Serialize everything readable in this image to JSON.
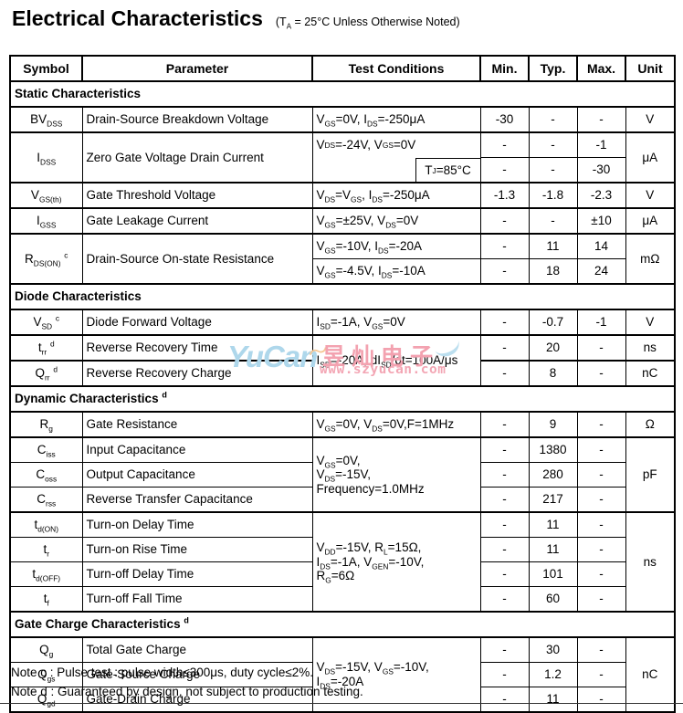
{
  "page": {
    "title": "Electrical Characteristics",
    "title_note": "(T~A~ = 25°C Unless Otherwise Noted)"
  },
  "table": {
    "headers": [
      "Symbol",
      "Parameter",
      "Test Conditions",
      "Min.",
      "Typ.",
      "Max.",
      "Unit"
    ],
    "rows": [
      {
        "type": "section",
        "thick": true,
        "label": "Static Characteristics"
      },
      {
        "type": "data",
        "thick": true,
        "cells": [
          {
            "k": "sym",
            "t": "BV~DSS~"
          },
          {
            "k": "param",
            "t": "Drain-Source Breakdown Voltage"
          },
          {
            "k": "cond",
            "t": "V~GS~=0V, I~DS~=-250μA"
          },
          {
            "k": "num",
            "t": "-30"
          },
          {
            "k": "num",
            "t": "-"
          },
          {
            "k": "num",
            "t": "-"
          },
          {
            "k": "unit",
            "t": "V"
          }
        ]
      },
      {
        "type": "data",
        "thick": true,
        "cells": [
          {
            "k": "sym",
            "t": "I~DSS~",
            "rs": 2
          },
          {
            "k": "param",
            "t": "Zero Gate Voltage Drain Current",
            "rs": 2
          },
          {
            "k": "condsplit",
            "t": "V~DS~=-24V, V~GS~=0V",
            "sub": "T~J~=85°C",
            "rs": 2
          },
          {
            "k": "num",
            "t": "-"
          },
          {
            "k": "num",
            "t": "-"
          },
          {
            "k": "num",
            "t": "-1"
          },
          {
            "k": "unit",
            "t": "μA",
            "rs": 2
          }
        ]
      },
      {
        "type": "data",
        "cells": [
          {
            "k": "num",
            "t": "-"
          },
          {
            "k": "num",
            "t": "-"
          },
          {
            "k": "num",
            "t": "-30"
          }
        ]
      },
      {
        "type": "data",
        "thick": true,
        "cells": [
          {
            "k": "sym",
            "t": "V~GS(th)~"
          },
          {
            "k": "param",
            "t": "Gate Threshold Voltage"
          },
          {
            "k": "cond",
            "t": "V~DS~=V~GS~, I~DS~=-250μA"
          },
          {
            "k": "num",
            "t": "-1.3"
          },
          {
            "k": "num",
            "t": "-1.8"
          },
          {
            "k": "num",
            "t": "-2.3"
          },
          {
            "k": "unit",
            "t": "V"
          }
        ]
      },
      {
        "type": "data",
        "thick": true,
        "cells": [
          {
            "k": "sym",
            "t": "I~GSS~"
          },
          {
            "k": "param",
            "t": "Gate Leakage Current"
          },
          {
            "k": "cond",
            "t": "V~GS~=±25V, V~DS~=0V"
          },
          {
            "k": "num",
            "t": "-"
          },
          {
            "k": "num",
            "t": "-"
          },
          {
            "k": "num",
            "t": "±10"
          },
          {
            "k": "unit",
            "t": "μA"
          }
        ]
      },
      {
        "type": "data",
        "thick": true,
        "cells": [
          {
            "k": "sym",
            "t": "R~DS(ON)~ ^c^",
            "rs": 2
          },
          {
            "k": "param",
            "t": "Drain-Source On-state Resistance",
            "rs": 2
          },
          {
            "k": "cond",
            "t": "V~GS~=-10V, I~DS~=-20A"
          },
          {
            "k": "num",
            "t": "-"
          },
          {
            "k": "num",
            "t": "11"
          },
          {
            "k": "num",
            "t": "14"
          },
          {
            "k": "unit",
            "t": "mΩ",
            "rs": 2
          }
        ]
      },
      {
        "type": "data",
        "cells": [
          {
            "k": "cond",
            "t": "V~GS~=-4.5V, I~DS~=-10A"
          },
          {
            "k": "num",
            "t": "-"
          },
          {
            "k": "num",
            "t": "18"
          },
          {
            "k": "num",
            "t": "24"
          }
        ]
      },
      {
        "type": "section",
        "thick": true,
        "label": "Diode Characteristics"
      },
      {
        "type": "data",
        "thick": true,
        "cells": [
          {
            "k": "sym",
            "t": "V~SD~ ^c^"
          },
          {
            "k": "param",
            "t": "Diode Forward Voltage"
          },
          {
            "k": "cond",
            "t": "I~SD~=-1A, V~GS~=0V"
          },
          {
            "k": "num",
            "t": "-"
          },
          {
            "k": "num",
            "t": "-0.7"
          },
          {
            "k": "num",
            "t": "-1"
          },
          {
            "k": "unit",
            "t": "V"
          }
        ]
      },
      {
        "type": "data",
        "thick": true,
        "cells": [
          {
            "k": "sym",
            "t": "t~rr~ ^d^"
          },
          {
            "k": "param",
            "t": "Reverse Recovery Time"
          },
          {
            "k": "cond",
            "t": "I~SD~=-20A, dI~SD~/dt=100A/μs",
            "rs": 2
          },
          {
            "k": "num",
            "t": "-"
          },
          {
            "k": "num",
            "t": "20"
          },
          {
            "k": "num",
            "t": "-"
          },
          {
            "k": "unit",
            "t": "ns"
          }
        ]
      },
      {
        "type": "data",
        "thick": true,
        "cells": [
          {
            "k": "sym",
            "t": "Q~rr~ ^d^"
          },
          {
            "k": "param",
            "t": "Reverse Recovery Charge"
          },
          {
            "k": "num",
            "t": "-"
          },
          {
            "k": "num",
            "t": "8"
          },
          {
            "k": "num",
            "t": "-"
          },
          {
            "k": "unit",
            "t": "nC"
          }
        ]
      },
      {
        "type": "section",
        "thick": true,
        "label": "Dynamic Characteristics ^d^"
      },
      {
        "type": "data",
        "thick": true,
        "cells": [
          {
            "k": "sym",
            "t": "R~g~"
          },
          {
            "k": "param",
            "t": "Gate Resistance"
          },
          {
            "k": "cond",
            "t": "V~GS~=0V, V~DS~=0V,F=1MHz"
          },
          {
            "k": "num",
            "t": "-"
          },
          {
            "k": "num",
            "t": "9"
          },
          {
            "k": "num",
            "t": "-"
          },
          {
            "k": "unit",
            "t": "Ω"
          }
        ]
      },
      {
        "type": "data",
        "thick": true,
        "cells": [
          {
            "k": "sym",
            "t": "C~iss~"
          },
          {
            "k": "param",
            "t": "Input Capacitance"
          },
          {
            "k": "cond",
            "t": "V~GS~=0V,\nV~DS~=-15V,\nFrequency=1.0MHz",
            "rs": 3
          },
          {
            "k": "num",
            "t": "-"
          },
          {
            "k": "num",
            "t": "1380"
          },
          {
            "k": "num",
            "t": "-"
          },
          {
            "k": "unit",
            "t": "pF",
            "rs": 3
          }
        ]
      },
      {
        "type": "data",
        "cells": [
          {
            "k": "sym",
            "t": "C~oss~"
          },
          {
            "k": "param",
            "t": "Output Capacitance"
          },
          {
            "k": "num",
            "t": "-"
          },
          {
            "k": "num",
            "t": "280"
          },
          {
            "k": "num",
            "t": "-"
          }
        ]
      },
      {
        "type": "data",
        "cells": [
          {
            "k": "sym",
            "t": "C~rss~"
          },
          {
            "k": "param",
            "t": "Reverse Transfer Capacitance"
          },
          {
            "k": "num",
            "t": "-"
          },
          {
            "k": "num",
            "t": "217"
          },
          {
            "k": "num",
            "t": "-"
          }
        ]
      },
      {
        "type": "data",
        "thick": true,
        "cells": [
          {
            "k": "sym",
            "t": "t~d(ON)~"
          },
          {
            "k": "param",
            "t": "Turn-on Delay Time"
          },
          {
            "k": "cond",
            "t": "V~DD~=-15V, R~L~=15Ω,\nI~DS~=-1A, V~GEN~=-10V,\nR~G~=6Ω",
            "rs": 4
          },
          {
            "k": "num",
            "t": "-"
          },
          {
            "k": "num",
            "t": "11"
          },
          {
            "k": "num",
            "t": "-"
          },
          {
            "k": "unit",
            "t": "ns",
            "rs": 4
          }
        ]
      },
      {
        "type": "data",
        "cells": [
          {
            "k": "sym",
            "t": "t~r~"
          },
          {
            "k": "param",
            "t": "Turn-on Rise Time"
          },
          {
            "k": "num",
            "t": "-"
          },
          {
            "k": "num",
            "t": "11"
          },
          {
            "k": "num",
            "t": "-"
          }
        ]
      },
      {
        "type": "data",
        "cells": [
          {
            "k": "sym",
            "t": "t~d(OFF)~"
          },
          {
            "k": "param",
            "t": "Turn-off Delay Time"
          },
          {
            "k": "num",
            "t": "-"
          },
          {
            "k": "num",
            "t": "101"
          },
          {
            "k": "num",
            "t": "-"
          }
        ]
      },
      {
        "type": "data",
        "cells": [
          {
            "k": "sym",
            "t": "t~f~"
          },
          {
            "k": "param",
            "t": "Turn-off Fall Time"
          },
          {
            "k": "num",
            "t": "-"
          },
          {
            "k": "num",
            "t": "60"
          },
          {
            "k": "num",
            "t": "-"
          }
        ]
      },
      {
        "type": "section",
        "thick": true,
        "label": "Gate Charge Characteristics ^d^"
      },
      {
        "type": "data",
        "thick": true,
        "cells": [
          {
            "k": "sym",
            "t": "Q~g~"
          },
          {
            "k": "param",
            "t": "Total Gate Charge"
          },
          {
            "k": "cond",
            "t": "V~DS~=-15V, V~GS~=-10V,\nI~DS~=-20A",
            "rs": 3
          },
          {
            "k": "num",
            "t": "-"
          },
          {
            "k": "num",
            "t": "30"
          },
          {
            "k": "num",
            "t": "-"
          },
          {
            "k": "unit",
            "t": "nC",
            "rs": 3
          }
        ]
      },
      {
        "type": "data",
        "cells": [
          {
            "k": "sym",
            "t": "Q~gs~"
          },
          {
            "k": "param",
            "t": "Gate-Source Charge"
          },
          {
            "k": "num",
            "t": "-"
          },
          {
            "k": "num",
            "t": "1.2"
          },
          {
            "k": "num",
            "t": "-"
          }
        ]
      },
      {
        "type": "data",
        "cells": [
          {
            "k": "sym",
            "t": "Q~gd~"
          },
          {
            "k": "param",
            "t": "Gate-Drain Charge"
          },
          {
            "k": "num",
            "t": "-"
          },
          {
            "k": "num",
            "t": "11"
          },
          {
            "k": "num",
            "t": "-"
          }
        ]
      }
    ]
  },
  "watermark": {
    "brand": "YuCan",
    "cn": "昱灿电子",
    "url": "www.szyucan.com",
    "brand_color": "#aed7eb",
    "pink_color": "#f3a2b0",
    "orange_color": "#f6c795"
  },
  "notes": [
    "Note c : Pulse test : pulse width≤300μs, duty cycle≤2%.",
    "Note d : Guaranteed by design, not subject to production testing."
  ]
}
